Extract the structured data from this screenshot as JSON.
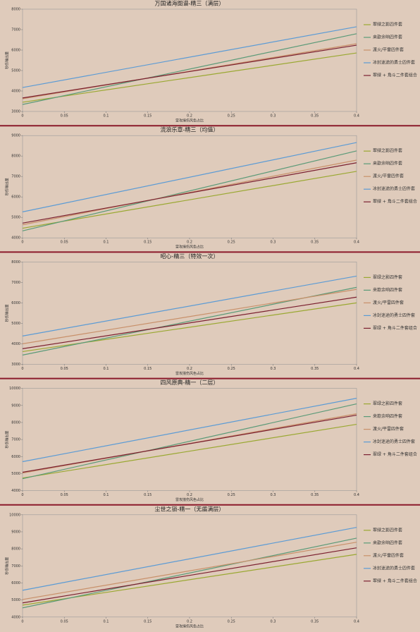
{
  "chart_data": [
    {
      "type": "line",
      "title": "万国诸海图谱-精三（满层）",
      "xlabel": "雷攻撞伤风色占比",
      "ylabel": "秒伤输出量",
      "x": [
        0,
        0.4
      ],
      "xlim": [
        0,
        0.4
      ],
      "xticks": [
        0,
        0.05,
        0.1,
        0.15,
        0.2,
        0.25,
        0.3,
        0.35,
        0.4
      ],
      "ylim": [
        3000,
        8000
      ],
      "yticks": [
        3000,
        4000,
        5000,
        6000,
        7000,
        8000
      ],
      "series": [
        {
          "name": "翠绿之影四件套",
          "color": "#9aa832",
          "values": [
            3450,
            5860
          ]
        },
        {
          "name": "来歆余响四件套",
          "color": "#5a9a78",
          "values": [
            3340,
            6800
          ]
        },
        {
          "name": "渡火/平雷四件套",
          "color": "#c8906a",
          "values": [
            3620,
            6310
          ]
        },
        {
          "name": "冰封迷途的勇士四件套",
          "color": "#5b9bd5",
          "values": [
            4170,
            7140
          ]
        },
        {
          "name": "翠绿 + 角斗二件套组合",
          "color": "#7b2030",
          "values": [
            3660,
            6240
          ]
        }
      ]
    },
    {
      "type": "line",
      "title": "流浪乐章-精三（均值）",
      "xlabel": "雷攻撞伤风色占比",
      "ylabel": "秒伤输出量",
      "x": [
        0,
        0.4
      ],
      "xlim": [
        0,
        0.4
      ],
      "xticks": [
        0,
        0.05,
        0.1,
        0.15,
        0.2,
        0.25,
        0.3,
        0.35,
        0.4
      ],
      "ylim": [
        4000,
        9000
      ],
      "yticks": [
        4000,
        5000,
        6000,
        7000,
        8000,
        9000
      ],
      "series": [
        {
          "name": "翠绿之影四件套",
          "color": "#9aa832",
          "values": [
            4470,
            7250
          ]
        },
        {
          "name": "来歆余响四件套",
          "color": "#5a9a78",
          "values": [
            4340,
            8250
          ]
        },
        {
          "name": "渡火/平雷四件套",
          "color": "#c8906a",
          "values": [
            4640,
            7800
          ]
        },
        {
          "name": "冰封迷途的勇士四件套",
          "color": "#5b9bd5",
          "values": [
            5270,
            8660
          ]
        },
        {
          "name": "翠绿 + 角斗二件套组合",
          "color": "#7b2030",
          "values": [
            4720,
            7670
          ]
        }
      ]
    },
    {
      "type": "line",
      "title": "昭心-精三（特效一次）",
      "xlabel": "雷攻撞伤风色占比",
      "ylabel": "秒伤输出量",
      "x": [
        0,
        0.4
      ],
      "xlim": [
        0,
        0.4
      ],
      "xticks": [
        0,
        0.05,
        0.1,
        0.15,
        0.2,
        0.25,
        0.3,
        0.35,
        0.4
      ],
      "ylim": [
        3000,
        8000
      ],
      "yticks": [
        3000,
        4000,
        5000,
        6000,
        7000,
        8000
      ],
      "series": [
        {
          "name": "翠绿之影四件套",
          "color": "#9aa832",
          "values": [
            3620,
            6000
          ]
        },
        {
          "name": "来歆余响四件套",
          "color": "#5a9a78",
          "values": [
            3450,
            6760
          ]
        },
        {
          "name": "渡火/平雷四件套",
          "color": "#c8906a",
          "values": [
            4000,
            6660
          ]
        },
        {
          "name": "冰封迷途的勇士四件套",
          "color": "#5b9bd5",
          "values": [
            4380,
            7310
          ]
        },
        {
          "name": "翠绿 + 角斗二件套组合",
          "color": "#7b2030",
          "values": [
            3760,
            6280
          ]
        }
      ]
    },
    {
      "type": "line",
      "title": "四风原典-精一（二层）",
      "xlabel": "雷攻撞伤风色占比",
      "ylabel": "秒伤输出量",
      "x": [
        0,
        0.4
      ],
      "xlim": [
        0,
        0.4
      ],
      "xticks": [
        0,
        0.05,
        0.1,
        0.15,
        0.2,
        0.25,
        0.3,
        0.35,
        0.4
      ],
      "ylim": [
        4000,
        10000
      ],
      "yticks": [
        4000,
        5000,
        6000,
        7000,
        8000,
        9000,
        10000
      ],
      "series": [
        {
          "name": "翠绿之影四件套",
          "color": "#9aa832",
          "values": [
            4740,
            7890
          ]
        },
        {
          "name": "来歆余响四件套",
          "color": "#5a9a78",
          "values": [
            4700,
            9090
          ]
        },
        {
          "name": "渡火/平雷四件套",
          "color": "#c8906a",
          "values": [
            5030,
            8510
          ]
        },
        {
          "name": "冰封迷途的勇士四件套",
          "color": "#5b9bd5",
          "values": [
            5700,
            9420
          ]
        },
        {
          "name": "翠绿 + 角斗二件套组合",
          "color": "#7b2030",
          "values": [
            5080,
            8430
          ]
        }
      ]
    },
    {
      "type": "line",
      "title": "尘世之锁-精一（无盾满层）",
      "xlabel": "雷攻撞伤风色占比",
      "ylabel": "秒伤输出量",
      "x": [
        0,
        0.4
      ],
      "xlim": [
        0,
        0.4
      ],
      "xticks": [
        0,
        0.05,
        0.1,
        0.15,
        0.2,
        0.25,
        0.3,
        0.35,
        0.4
      ],
      "ylim": [
        4000,
        10000
      ],
      "yticks": [
        4000,
        5000,
        6000,
        7000,
        8000,
        9000,
        10000
      ],
      "series": [
        {
          "name": "翠绿之影四件套",
          "color": "#9aa832",
          "values": [
            4700,
            7680
          ]
        },
        {
          "name": "来歆余响四件套",
          "color": "#5a9a78",
          "values": [
            4540,
            8630
          ]
        },
        {
          "name": "渡火/平雷四件套",
          "color": "#c8906a",
          "values": [
            5030,
            8390
          ]
        },
        {
          "name": "冰封迷途的勇士四件套",
          "color": "#5b9bd5",
          "values": [
            5570,
            9260
          ]
        },
        {
          "name": "翠绿 + 角斗二件套组合",
          "color": "#7b2030",
          "values": [
            4830,
            8060
          ]
        }
      ]
    }
  ]
}
